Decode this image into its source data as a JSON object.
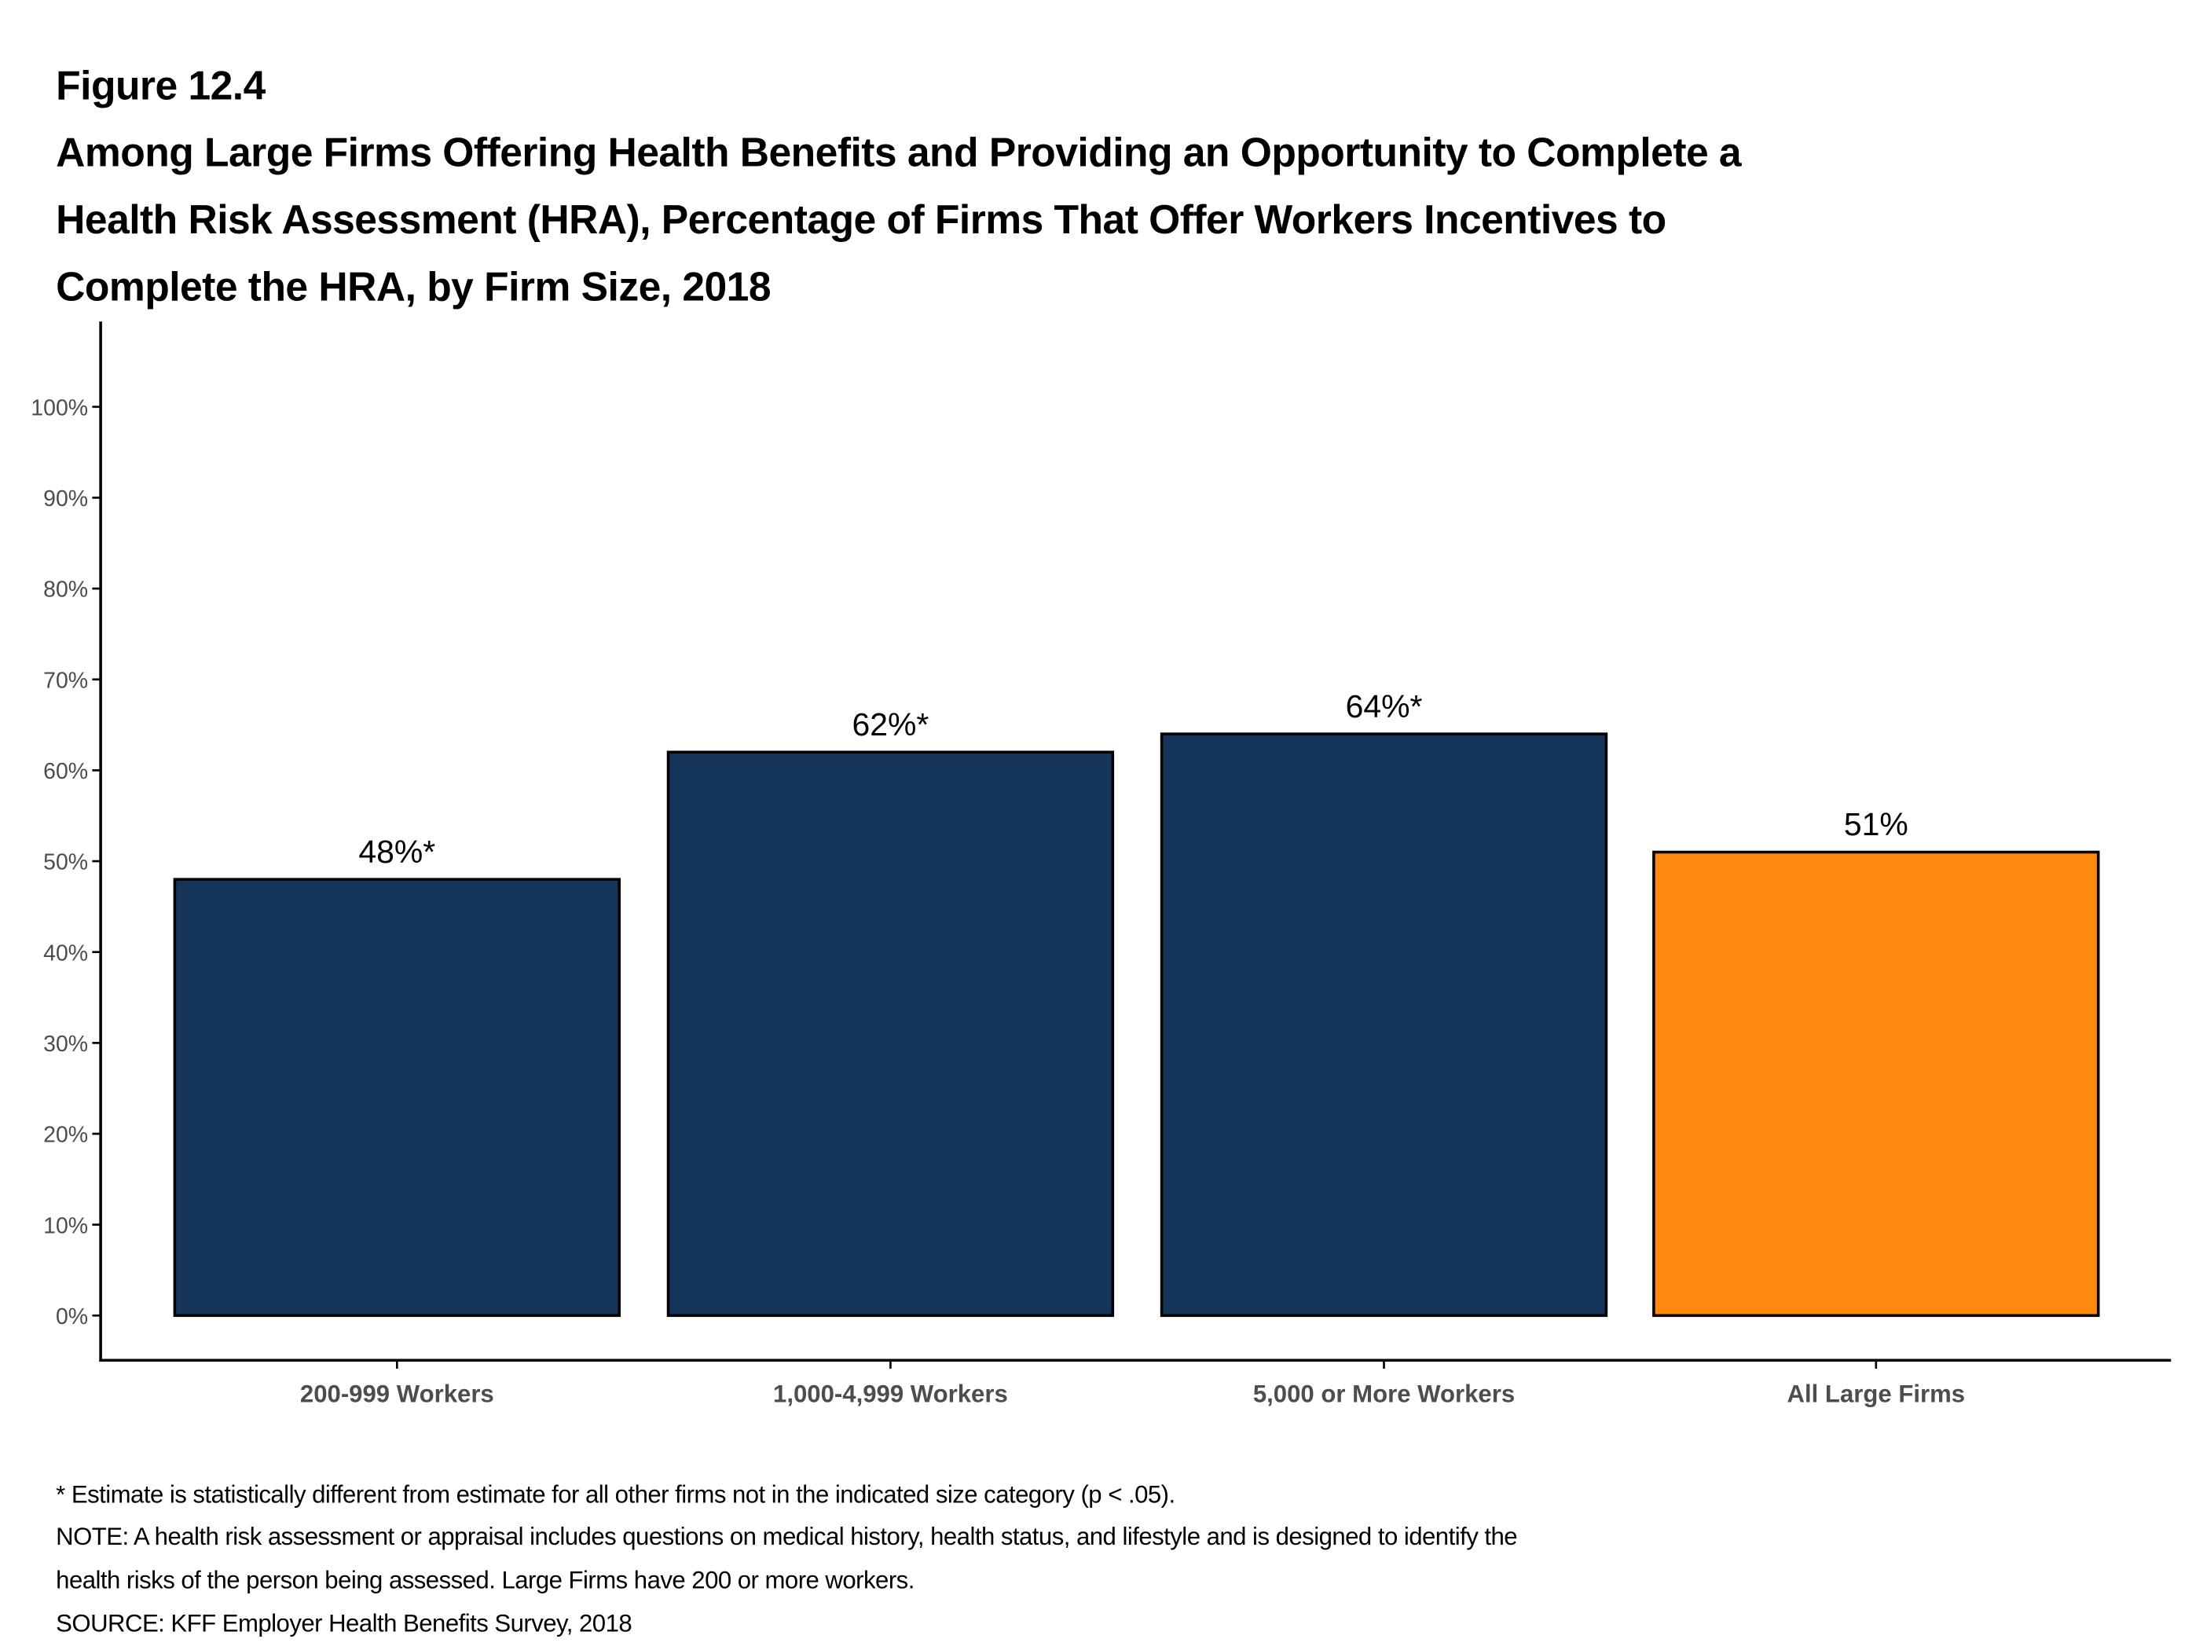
{
  "figure_label": "Figure 12.4",
  "title_lines": [
    "Among Large Firms Offering Health Benefits and Providing an Opportunity to Complete a",
    "Health Risk Assessment (HRA), Percentage of Firms That Offer Workers Incentives to",
    "Complete the HRA, by Firm Size, 2018"
  ],
  "notes": [
    "* Estimate is statistically different from estimate for all other firms not in the indicated size category (p < .05).",
    "NOTE: A health risk assessment or appraisal includes questions on medical history, health status, and lifestyle and is designed to identify the",
    "health risks of the person being assessed. Large Firms have 200 or more workers.",
    "SOURCE: KFF Employer Health Benefits Survey, 2018"
  ],
  "chart_data": {
    "type": "bar",
    "categories": [
      "200-999 Workers",
      "1,000-4,999 Workers",
      "5,000 or More Workers",
      "All Large Firms"
    ],
    "values": [
      48,
      62,
      64,
      51
    ],
    "data_labels": [
      "48%*",
      "62%*",
      "64%*",
      "51%"
    ],
    "colors": [
      "#15355A",
      "#15355A",
      "#15355A",
      "#FF8811"
    ],
    "ylim": [
      0,
      100
    ],
    "yticks": [
      "0%",
      "10%",
      "20%",
      "30%",
      "40%",
      "50%",
      "60%",
      "70%",
      "80%",
      "90%",
      "100%"
    ],
    "grid": false,
    "xlabel": "",
    "ylabel": ""
  }
}
